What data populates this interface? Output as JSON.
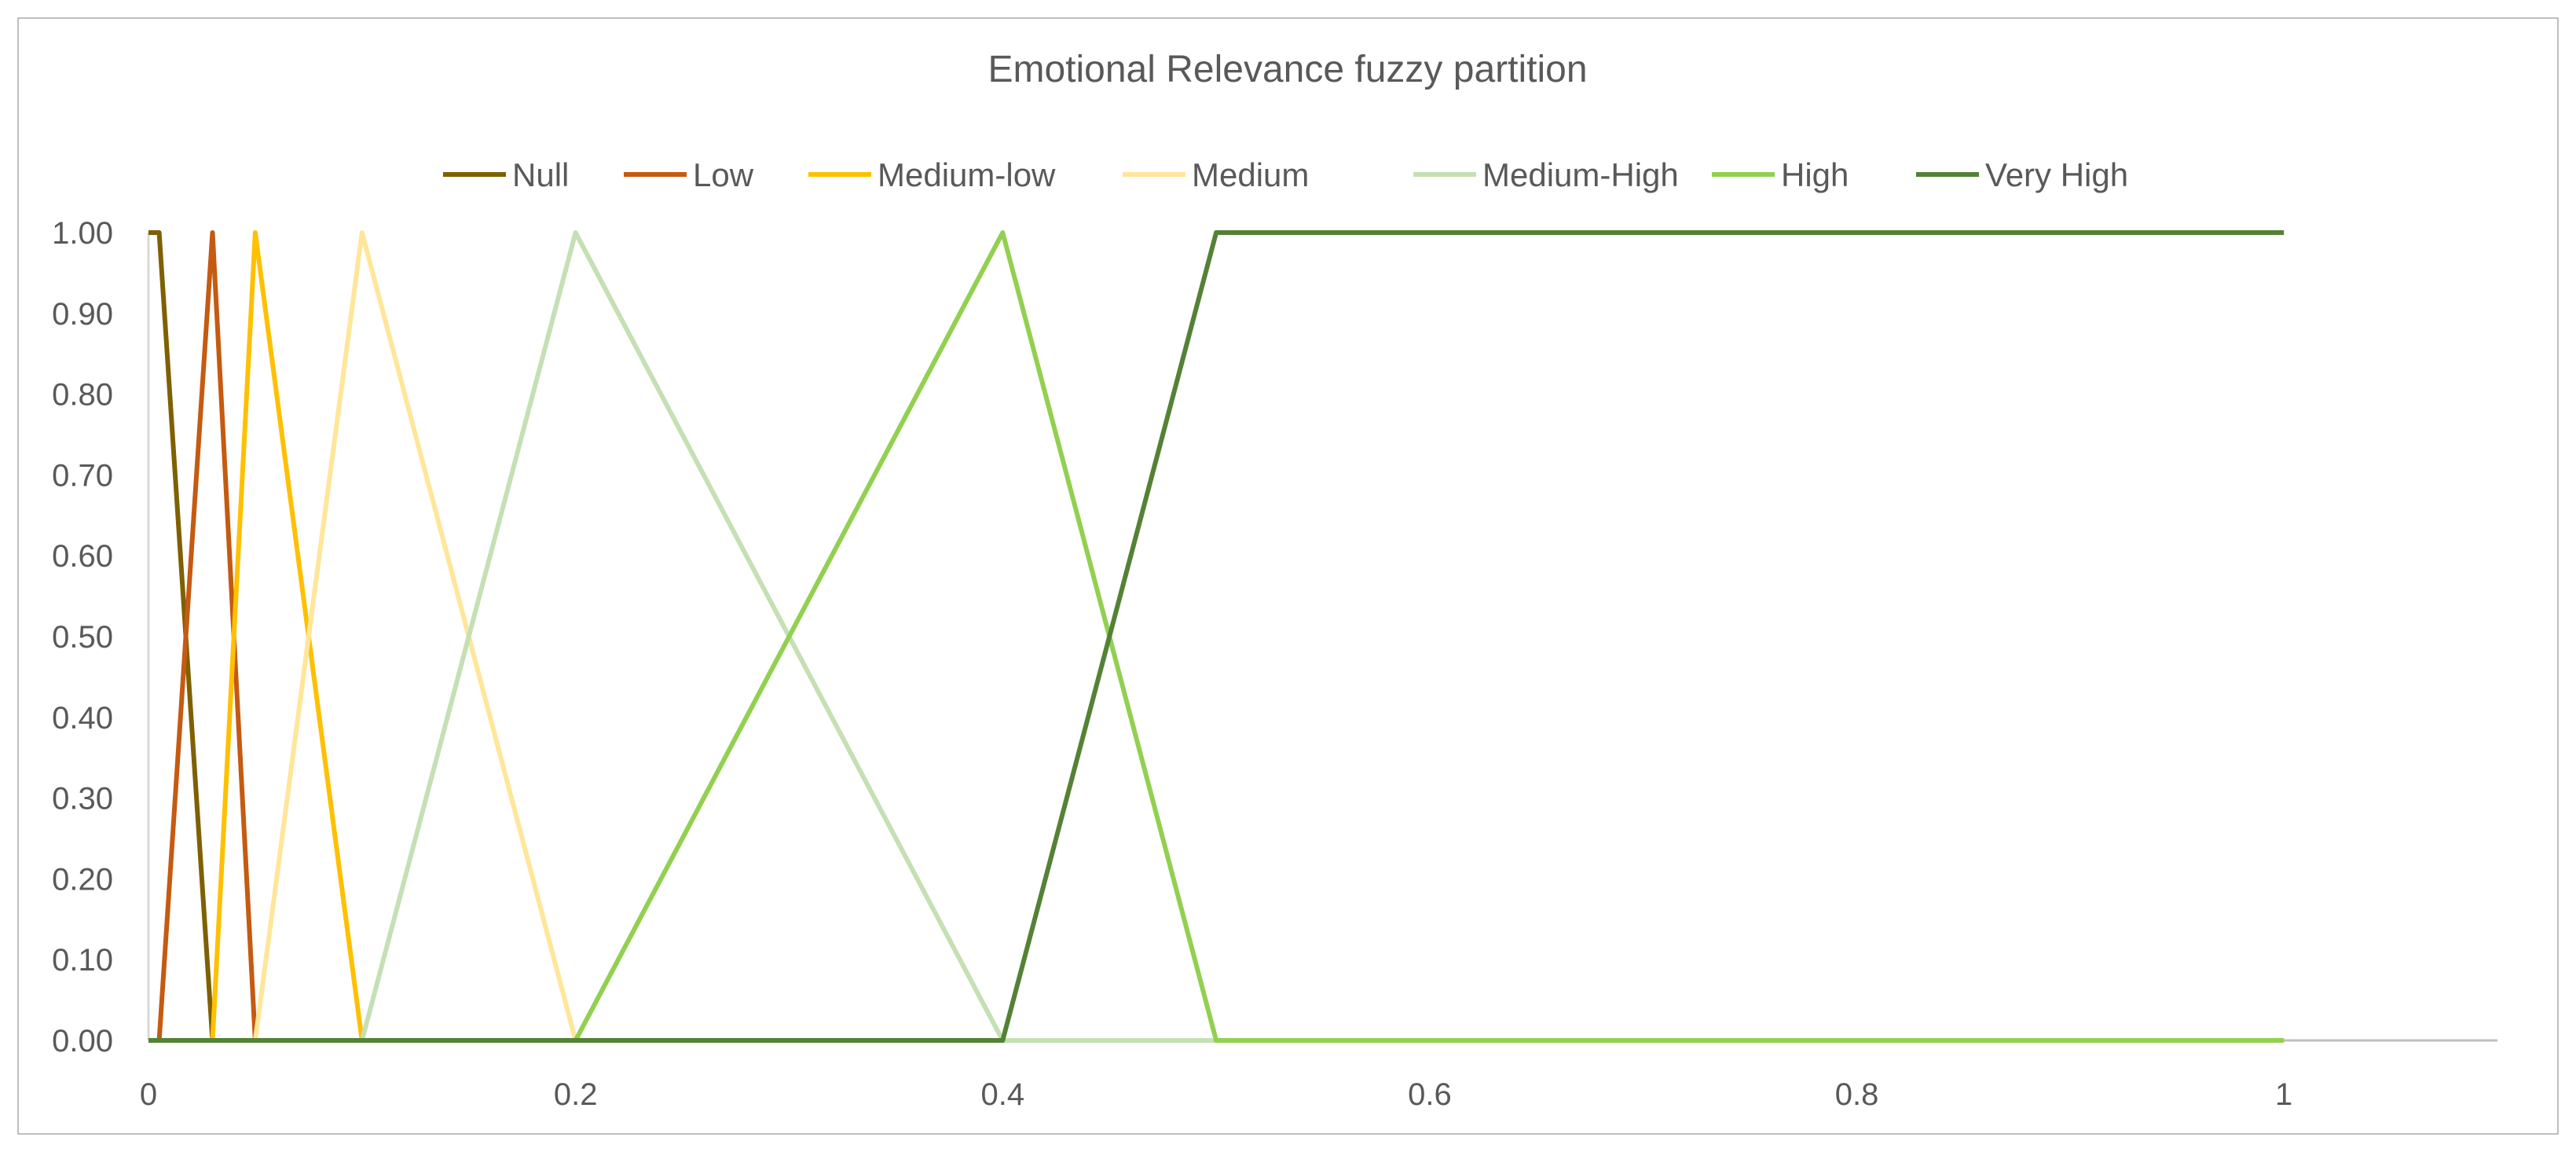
{
  "chart_data": {
    "type": "line",
    "title": "Emotional Relevance fuzzy partition",
    "xlabel": "",
    "ylabel": "",
    "xlim": [
      0,
      1.1
    ],
    "ylim": [
      0,
      1
    ],
    "x_ticks": [
      "0",
      "0.2",
      "0.4",
      "0.6",
      "0.8",
      "1"
    ],
    "x_tick_values": [
      0,
      0.2,
      0.4,
      0.6,
      0.8,
      1
    ],
    "y_ticks": [
      "0.00",
      "0.10",
      "0.20",
      "0.30",
      "0.40",
      "0.50",
      "0.60",
      "0.70",
      "0.80",
      "0.90",
      "1.00"
    ],
    "y_tick_values": [
      0,
      0.1,
      0.2,
      0.3,
      0.4,
      0.5,
      0.6,
      0.7,
      0.8,
      0.9,
      1.0
    ],
    "grid": false,
    "legend_position": "top",
    "series": [
      {
        "name": "Null",
        "color": "#7f6000",
        "points": [
          [
            0,
            1
          ],
          [
            0.005,
            1
          ],
          [
            0.03,
            0
          ],
          [
            1,
            0
          ]
        ]
      },
      {
        "name": "Low",
        "color": "#c55a11",
        "points": [
          [
            0.005,
            0
          ],
          [
            0.03,
            1
          ],
          [
            0.05,
            0
          ],
          [
            1,
            0
          ]
        ]
      },
      {
        "name": "Medium-low",
        "color": "#ffc000",
        "points": [
          [
            0.03,
            0
          ],
          [
            0.05,
            1
          ],
          [
            0.1,
            0
          ],
          [
            1,
            0
          ]
        ]
      },
      {
        "name": "Medium",
        "color": "#ffe699",
        "points": [
          [
            0.05,
            0
          ],
          [
            0.1,
            1
          ],
          [
            0.2,
            0
          ],
          [
            1,
            0
          ]
        ]
      },
      {
        "name": "Medium-High",
        "color": "#c5e0b4",
        "points": [
          [
            0.1,
            0
          ],
          [
            0.2,
            1
          ],
          [
            0.4,
            0
          ],
          [
            1,
            0
          ]
        ]
      },
      {
        "name": "High",
        "color": "#92d050",
        "points": [
          [
            0.2,
            0
          ],
          [
            0.4,
            1
          ],
          [
            0.5,
            0
          ],
          [
            1,
            0
          ]
        ]
      },
      {
        "name": "Very High",
        "color": "#548235",
        "points": [
          [
            0,
            0
          ],
          [
            0.4,
            0
          ],
          [
            0.5,
            1
          ],
          [
            1,
            1
          ]
        ]
      }
    ]
  }
}
